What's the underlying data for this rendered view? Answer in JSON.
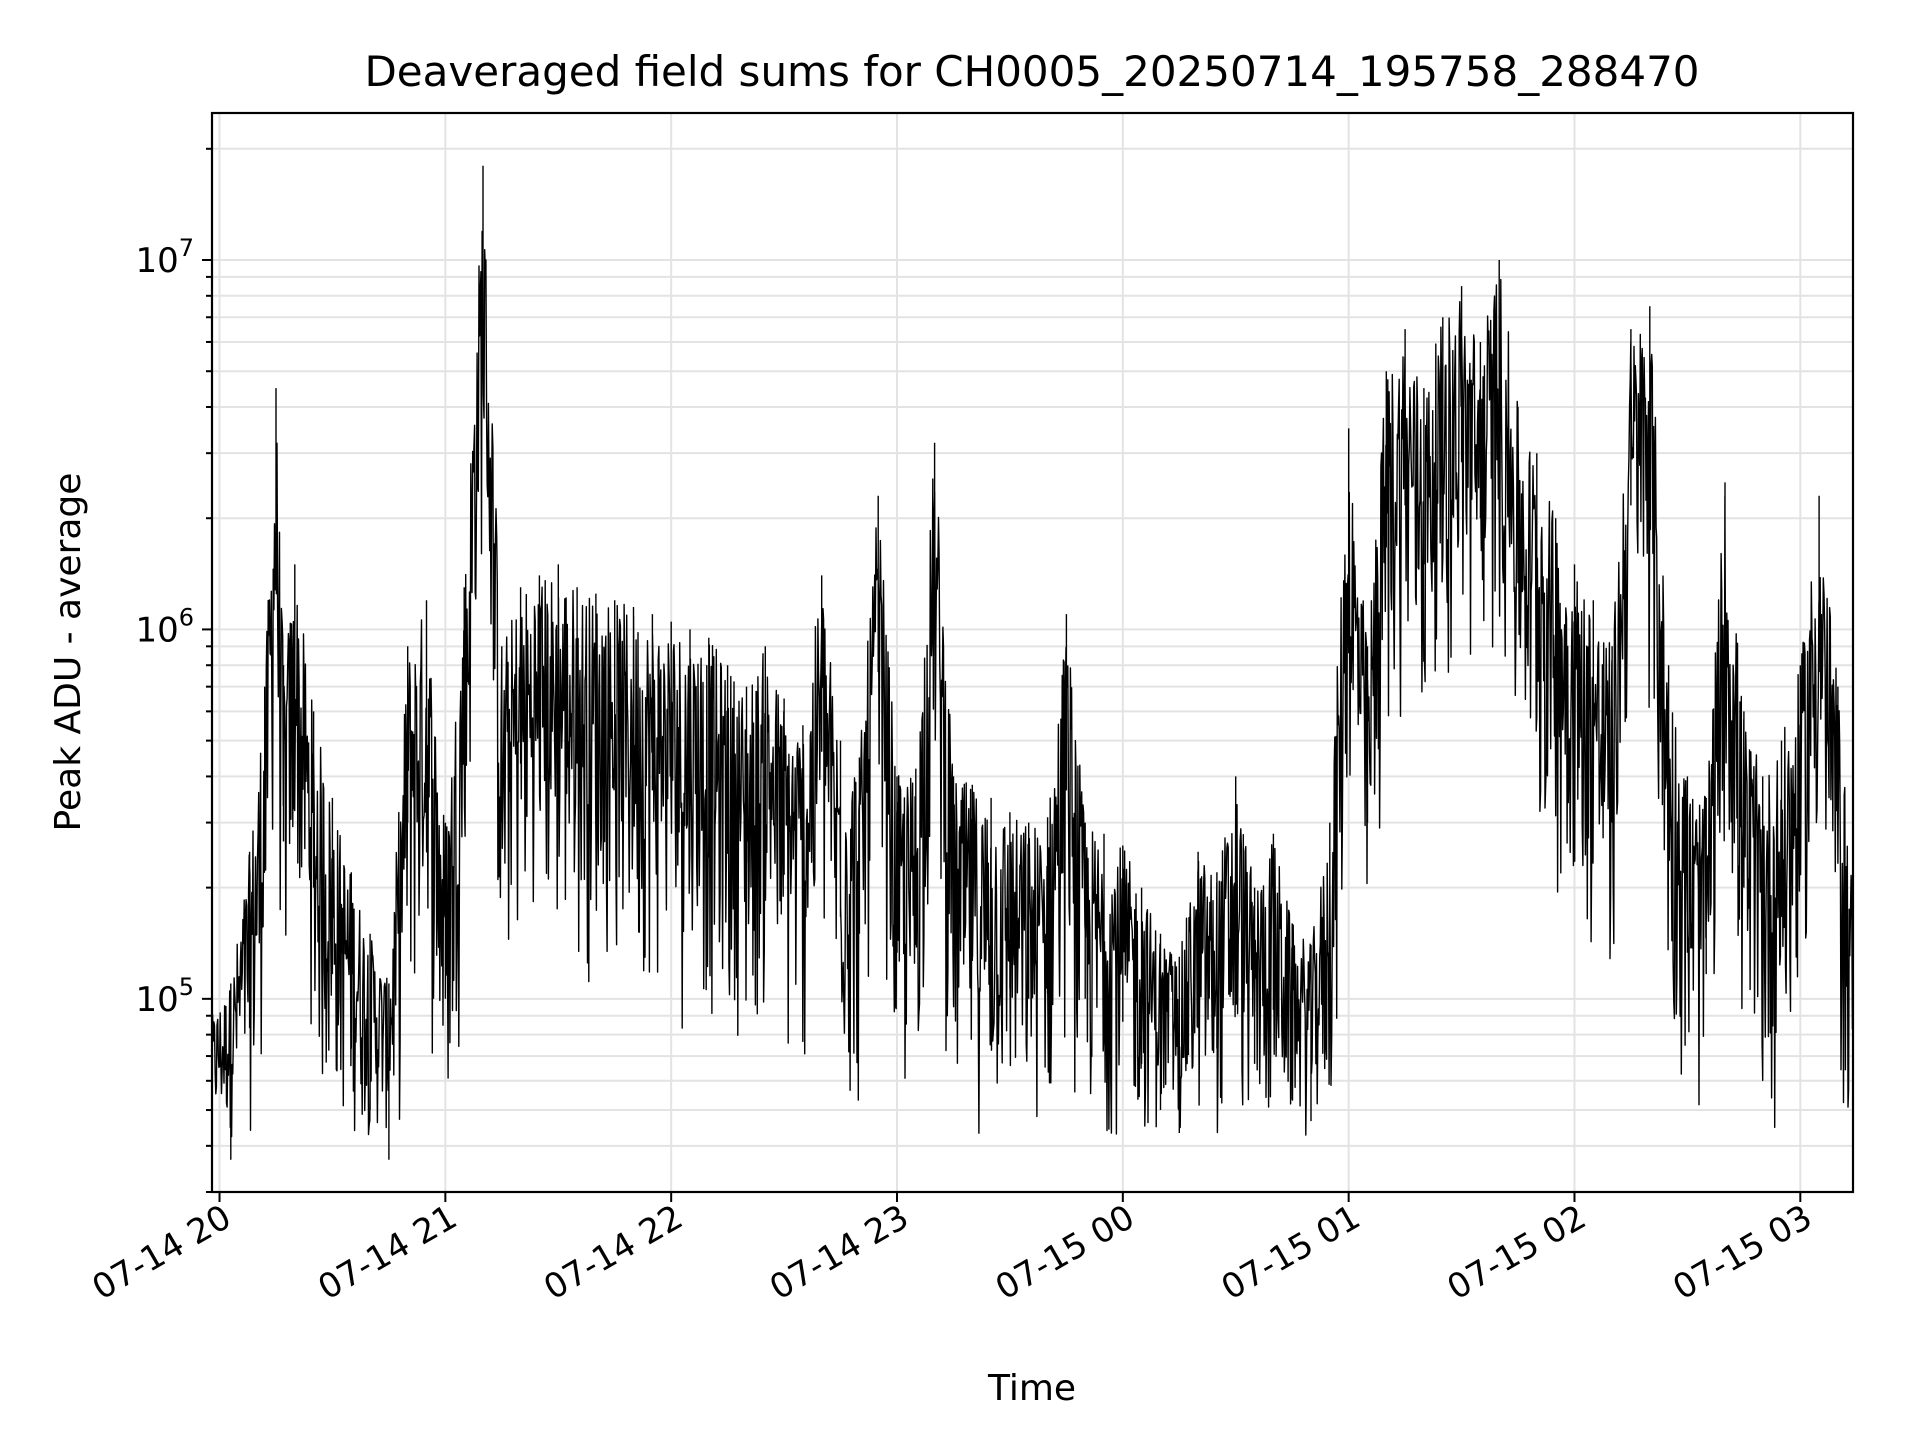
{
  "chart_data": {
    "type": "line",
    "title": "Deaveraged field sums for CH0005_20250714_195758_288470",
    "xlabel": "Time",
    "ylabel": "Peak ADU - average",
    "x_ticks": [
      "07-14 20",
      "07-14 21",
      "07-14 22",
      "07-14 23",
      "07-15 00",
      "07-15 01",
      "07-15 02",
      "07-15 03"
    ],
    "y_ticks": [
      {
        "base": "10",
        "exp": "5",
        "value": 100000
      },
      {
        "base": "10",
        "exp": "6",
        "value": 1000000
      },
      {
        "base": "10",
        "exp": "7",
        "value": 10000000
      }
    ],
    "y_scale": "log",
    "ylim": [
      30000,
      25000000
    ],
    "xlim": [
      "2025-07-14 19:58",
      "2025-07-15 03:14"
    ],
    "grid": true,
    "line_color": "#000000",
    "series": [
      {
        "x": [
          "2025-07-14 19:58",
          "2025-07-14 20:03",
          "2025-07-14 20:08",
          "2025-07-14 20:12",
          "2025-07-14 20:15",
          "2025-07-14 20:17",
          "2025-07-14 20:20",
          "2025-07-14 20:25",
          "2025-07-14 20:30",
          "2025-07-14 20:35",
          "2025-07-14 20:40",
          "2025-07-14 20:45",
          "2025-07-14 20:50",
          "2025-07-14 20:55",
          "2025-07-14 21:00",
          "2025-07-14 21:05",
          "2025-07-14 21:10",
          "2025-07-14 21:15",
          "2025-07-14 21:20",
          "2025-07-14 21:25",
          "2025-07-14 21:30",
          "2025-07-14 21:35",
          "2025-07-14 21:40",
          "2025-07-14 21:45",
          "2025-07-14 21:50",
          "2025-07-14 21:55",
          "2025-07-14 22:00",
          "2025-07-14 22:05",
          "2025-07-14 22:10",
          "2025-07-14 22:15",
          "2025-07-14 22:20",
          "2025-07-14 22:25",
          "2025-07-14 22:30",
          "2025-07-14 22:35",
          "2025-07-14 22:40",
          "2025-07-14 22:45",
          "2025-07-14 22:50",
          "2025-07-14 22:55",
          "2025-07-14 23:00",
          "2025-07-14 23:05",
          "2025-07-14 23:10",
          "2025-07-14 23:15",
          "2025-07-14 23:20",
          "2025-07-14 23:25",
          "2025-07-14 23:30",
          "2025-07-14 23:35",
          "2025-07-14 23:40",
          "2025-07-14 23:45",
          "2025-07-14 23:50",
          "2025-07-14 23:55",
          "2025-07-15 00:00",
          "2025-07-15 00:05",
          "2025-07-15 00:10",
          "2025-07-15 00:15",
          "2025-07-15 00:20",
          "2025-07-15 00:25",
          "2025-07-15 00:30",
          "2025-07-15 00:35",
          "2025-07-15 00:40",
          "2025-07-15 00:45",
          "2025-07-15 00:50",
          "2025-07-15 00:55",
          "2025-07-15 01:00",
          "2025-07-15 01:05",
          "2025-07-15 01:10",
          "2025-07-15 01:15",
          "2025-07-15 01:20",
          "2025-07-15 01:25",
          "2025-07-15 01:30",
          "2025-07-15 01:35",
          "2025-07-15 01:40",
          "2025-07-15 01:45",
          "2025-07-15 01:50",
          "2025-07-15 01:55",
          "2025-07-15 02:00",
          "2025-07-15 02:05",
          "2025-07-15 02:10",
          "2025-07-15 02:15",
          "2025-07-15 02:20",
          "2025-07-15 02:25",
          "2025-07-15 02:30",
          "2025-07-15 02:35",
          "2025-07-15 02:40",
          "2025-07-15 02:45",
          "2025-07-15 02:50",
          "2025-07-15 02:55",
          "2025-07-15 03:00",
          "2025-07-15 03:05",
          "2025-07-15 03:10",
          "2025-07-15 03:14"
        ],
        "y": [
          90000,
          110000,
          250000,
          700000,
          4500000,
          800000,
          1500000,
          600000,
          350000,
          220000,
          150000,
          110000,
          900000,
          1200000,
          300000,
          1300000,
          18000000,
          900000,
          1300000,
          1400000,
          1500000,
          1300000,
          1250000,
          1200000,
          1150000,
          1100000,
          1050000,
          1000000,
          950000,
          800000,
          700000,
          900000,
          650000,
          550000,
          1400000,
          500000,
          450000,
          2300000,
          400000,
          420000,
          3200000,
          400000,
          380000,
          350000,
          320000,
          300000,
          310000,
          1100000,
          300000,
          280000,
          260000,
          200000,
          150000,
          130000,
          250000,
          220000,
          400000,
          200000,
          280000,
          160000,
          140000,
          300000,
          3500000,
          900000,
          5000000,
          6500000,
          4500000,
          7000000,
          8500000,
          6000000,
          10000000,
          4000000,
          3000000,
          2000000,
          1500000,
          1200000,
          900000,
          6500000,
          7500000,
          800000,
          400000,
          350000,
          2500000,
          600000,
          400000,
          500000,
          800000,
          2300000,
          700000,
          200000
        ],
        "notes": "approximate envelope of a densely sampled noisy series"
      }
    ]
  }
}
